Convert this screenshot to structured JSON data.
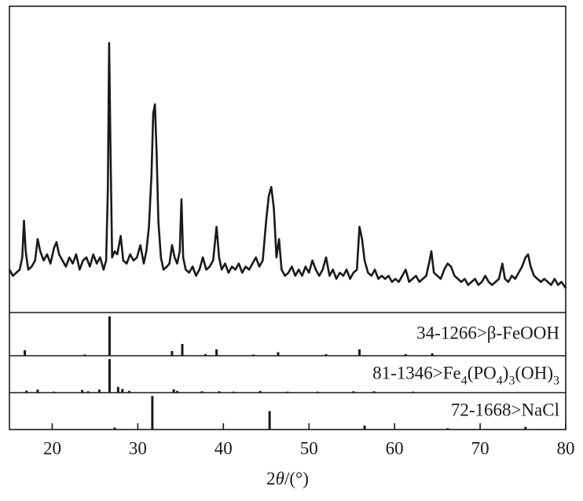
{
  "chart_data": {
    "type": "line",
    "color": "#1a1a1a",
    "xlabel": "2θ/(°)",
    "xlim": [
      15,
      80
    ],
    "xticks": [
      20,
      30,
      40,
      50,
      60,
      70,
      80
    ],
    "ylim": [
      0,
      100
    ],
    "x": [
      15.0,
      15.4,
      15.8,
      16.2,
      16.5,
      16.7,
      16.9,
      17.2,
      17.6,
      18.0,
      18.3,
      18.6,
      19.0,
      19.4,
      19.8,
      20.2,
      20.5,
      20.8,
      21.2,
      21.6,
      22.0,
      22.4,
      22.8,
      23.2,
      23.6,
      24.0,
      24.4,
      24.8,
      25.2,
      25.6,
      26.0,
      26.3,
      26.5,
      26.65,
      26.8,
      27.0,
      27.3,
      27.6,
      28.0,
      28.3,
      28.7,
      29.1,
      29.5,
      29.9,
      30.3,
      30.7,
      31.0,
      31.3,
      31.6,
      31.8,
      32.0,
      32.2,
      32.4,
      32.7,
      33.0,
      33.4,
      33.7,
      34.0,
      34.3,
      34.6,
      34.9,
      35.1,
      35.3,
      35.6,
      36.0,
      36.4,
      36.8,
      37.2,
      37.6,
      38.0,
      38.4,
      38.8,
      39.2,
      39.5,
      39.8,
      40.2,
      40.6,
      41.0,
      41.4,
      41.8,
      42.2,
      42.6,
      43.0,
      43.4,
      43.8,
      44.2,
      44.6,
      45.0,
      45.3,
      45.6,
      45.9,
      46.2,
      46.5,
      46.8,
      47.2,
      47.6,
      48.0,
      48.4,
      48.8,
      49.2,
      49.6,
      50.0,
      50.4,
      50.8,
      51.2,
      51.6,
      52.0,
      52.4,
      52.8,
      53.2,
      53.6,
      54.0,
      54.4,
      54.8,
      55.2,
      55.6,
      55.9,
      56.2,
      56.5,
      56.9,
      57.3,
      57.7,
      58.1,
      58.5,
      58.9,
      59.3,
      59.7,
      60.1,
      60.5,
      60.9,
      61.3,
      61.7,
      62.1,
      62.5,
      62.9,
      63.3,
      63.7,
      64.1,
      64.3,
      64.6,
      65.0,
      65.4,
      65.8,
      66.2,
      66.6,
      67.0,
      67.4,
      67.8,
      68.2,
      68.6,
      69.0,
      69.4,
      69.8,
      70.2,
      70.6,
      71.0,
      71.4,
      71.8,
      72.2,
      72.6,
      72.9,
      73.3,
      73.7,
      74.1,
      74.5,
      74.9,
      75.3,
      75.6,
      75.9,
      76.3,
      76.7,
      77.1,
      77.5,
      77.9,
      78.3,
      78.7,
      79.1,
      79.5,
      80.0
    ],
    "values": [
      14,
      12,
      13,
      14,
      18,
      30,
      20,
      14,
      15,
      17,
      24,
      20,
      17,
      19,
      16,
      21,
      23,
      19,
      17,
      15,
      18,
      16,
      19,
      14,
      17,
      18,
      15,
      19,
      16,
      18,
      14,
      17,
      40,
      88,
      55,
      18,
      20,
      19,
      25,
      17,
      16,
      19,
      17,
      18,
      22,
      16,
      20,
      28,
      45,
      65,
      68,
      52,
      30,
      18,
      14,
      15,
      16,
      22,
      18,
      16,
      20,
      37,
      18,
      14,
      13,
      15,
      12,
      14,
      18,
      14,
      15,
      17,
      28,
      18,
      14,
      16,
      13,
      15,
      14,
      16,
      13,
      15,
      14,
      16,
      18,
      15,
      17,
      30,
      38,
      41,
      34,
      18,
      24,
      14,
      12,
      13,
      15,
      12,
      14,
      12,
      15,
      13,
      17,
      14,
      12,
      14,
      18,
      12,
      14,
      11,
      13,
      12,
      14,
      11,
      13,
      14,
      28,
      24,
      17,
      13,
      12,
      14,
      11,
      12,
      11,
      12,
      10,
      11,
      10,
      12,
      14,
      10,
      11,
      12,
      10,
      11,
      12,
      17,
      20,
      13,
      12,
      11,
      14,
      16,
      15,
      12,
      11,
      10,
      11,
      9,
      10,
      11,
      9,
      10,
      12,
      10,
      9,
      10,
      11,
      16,
      11,
      10,
      12,
      11,
      13,
      15,
      18,
      19,
      15,
      12,
      11,
      10,
      11,
      10,
      9,
      11,
      9,
      10,
      8
    ],
    "reference_patterns": [
      {
        "label": "34-1266>β-FeOOH",
        "ylim": [
          0,
          110
        ],
        "positions": [
          16.8,
          23.8,
          26.7,
          34.0,
          35.2,
          37.9,
          39.2,
          43.5,
          46.4,
          52.0,
          55.9,
          61.3,
          64.4
        ],
        "intensities": [
          14,
          3,
          100,
          12,
          30,
          4,
          16,
          3,
          9,
          4,
          16,
          4,
          6
        ]
      },
      {
        "label": "81-1346>Fe4(PO4)3(OH)3",
        "ylim": [
          0,
          110
        ],
        "positions": [
          17.0,
          18.3,
          20.2,
          23.5,
          24.2,
          25.5,
          26.7,
          27.7,
          28.2,
          29.0,
          34.2,
          34.6,
          37.5,
          39.5,
          41.2,
          44.3,
          47.5,
          51.0,
          55.2,
          57.6,
          62.2
        ],
        "intensities": [
          6,
          9,
          3,
          8,
          4,
          9,
          100,
          17,
          11,
          5,
          10,
          5,
          4,
          4,
          3,
          5,
          3,
          3,
          4,
          4,
          3
        ]
      },
      {
        "label": "72-1668>NaCl",
        "ylim": [
          0,
          110
        ],
        "positions": [
          27.3,
          31.7,
          45.4,
          56.5,
          66.2,
          75.3
        ],
        "intensities": [
          6,
          100,
          55,
          12,
          4,
          8
        ]
      }
    ]
  }
}
